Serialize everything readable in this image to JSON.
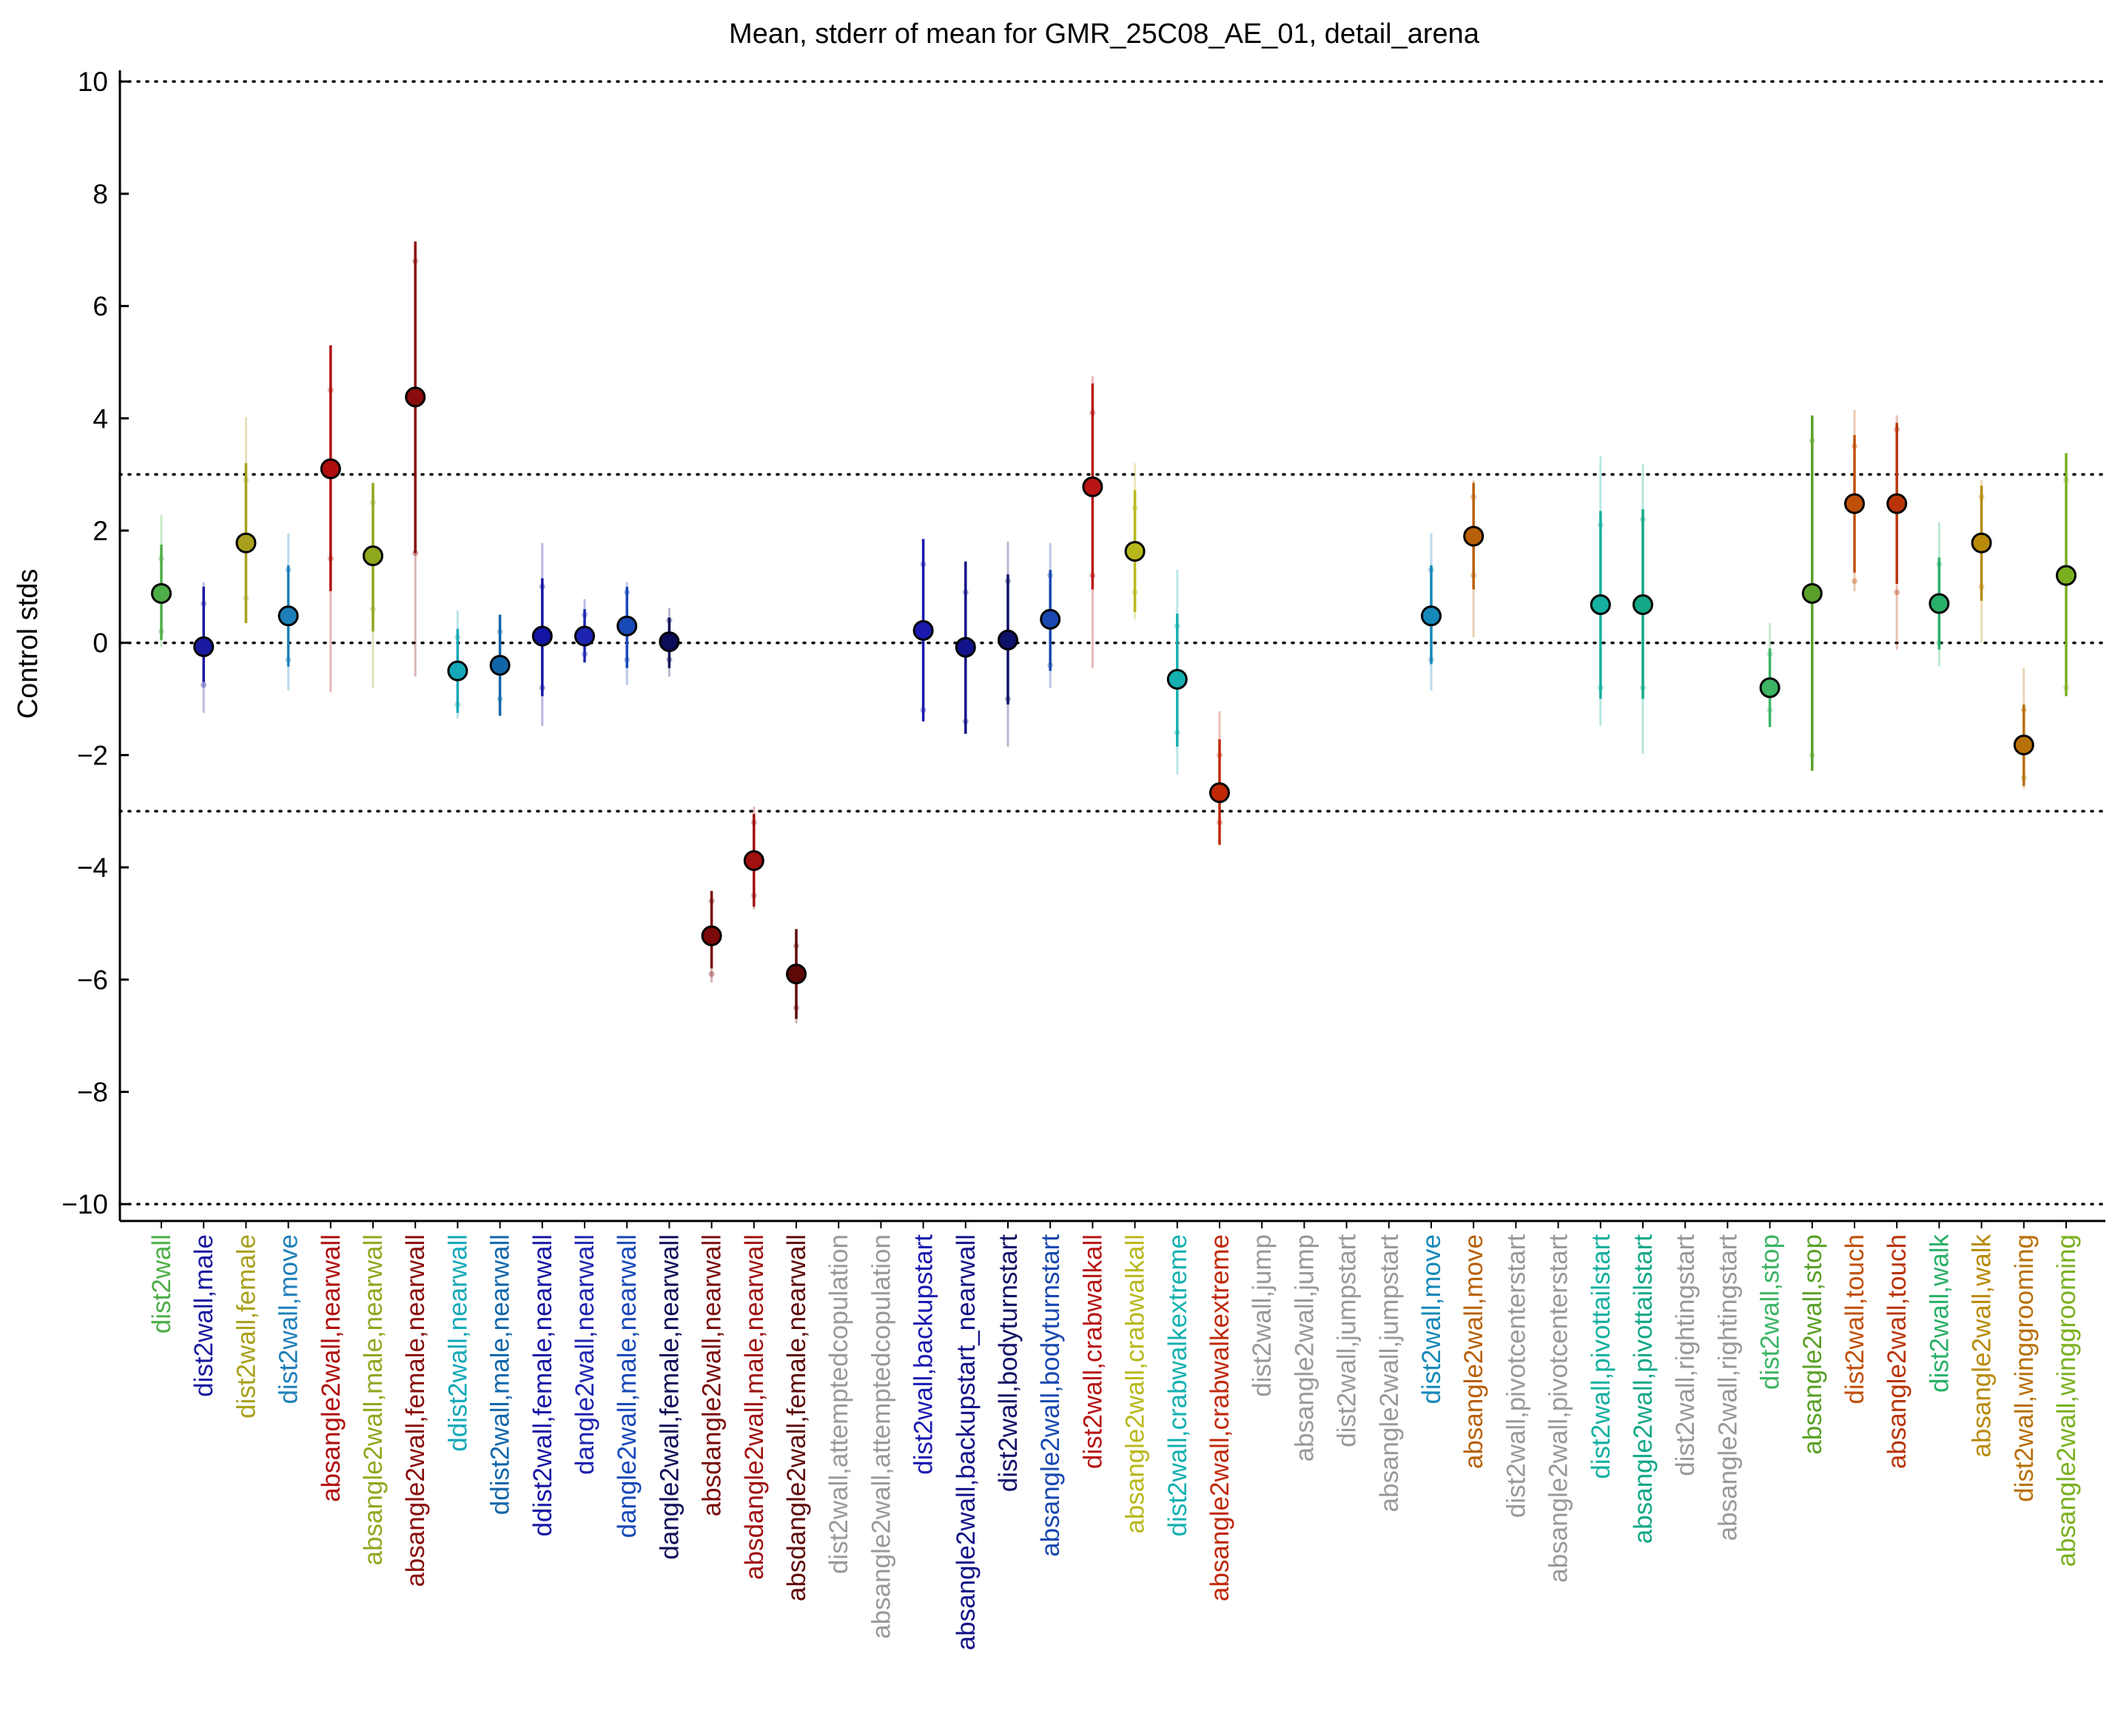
{
  "chart_data": {
    "type": "scatter",
    "title": "Mean, stderr of mean for GMR_25C08_AE_01, detail_arena",
    "xlabel": "",
    "ylabel": "Control stds",
    "ylim": [
      -10.3,
      10.2
    ],
    "yticks": [
      10,
      8,
      6,
      4,
      2,
      0,
      -2,
      -4,
      -6,
      -8,
      -10
    ],
    "ytick_labels": [
      "10",
      "8",
      "6",
      "4",
      "2",
      "0",
      "−2",
      "−4",
      "−6",
      "−8",
      "−10"
    ],
    "reference_lines": [
      10,
      3,
      0,
      -3,
      -10
    ],
    "grid": false,
    "legend": "none",
    "categories": [
      {
        "label": "dist2wall",
        "color": "#4dae47",
        "mean": 0.88,
        "se_lo": 0.05,
        "se_hi": 1.75,
        "std_lo": -0.08,
        "std_hi": 2.28,
        "pts": [
          0.2,
          1.5
        ]
      },
      {
        "label": "dist2wall,male",
        "color": "#1a1aa0",
        "mean": -0.07,
        "se_lo": -0.7,
        "se_hi": 1.0,
        "std_lo": -1.25,
        "std_hi": 1.08,
        "pts": [
          -0.75,
          0.7
        ]
      },
      {
        "label": "dist2wall,female",
        "color": "#a8a01c",
        "mean": 1.78,
        "se_lo": 0.35,
        "se_hi": 3.2,
        "std_lo": 0.35,
        "std_hi": 4.02,
        "pts": [
          0.8,
          2.9
        ]
      },
      {
        "label": "dist2wall,move",
        "color": "#1e7fb8",
        "mean": 0.48,
        "se_lo": -0.42,
        "se_hi": 1.38,
        "std_lo": -0.85,
        "std_hi": 1.95,
        "pts": [
          -0.3,
          1.3
        ]
      },
      {
        "label": "absangle2wall,nearwall",
        "color": "#b00e0e",
        "mean": 3.1,
        "se_lo": 0.92,
        "se_hi": 5.3,
        "std_lo": -0.88,
        "std_hi": 5.3,
        "pts": [
          1.5,
          4.5
        ]
      },
      {
        "label": "absangle2wall,male,nearwall",
        "color": "#8ea81e",
        "mean": 1.55,
        "se_lo": 0.2,
        "se_hi": 2.85,
        "std_lo": -0.8,
        "std_hi": 2.85,
        "pts": [
          0.6,
          2.5
        ]
      },
      {
        "label": "absangle2wall,female,nearwall",
        "color": "#8a0c0c",
        "mean": 4.38,
        "se_lo": 1.6,
        "se_hi": 7.15,
        "std_lo": -0.6,
        "std_hi": 7.15,
        "pts": [
          1.6,
          6.8
        ]
      },
      {
        "label": "ddist2wall,nearwall",
        "color": "#14a8b8",
        "mean": -0.5,
        "se_lo": -1.25,
        "se_hi": 0.25,
        "std_lo": -1.35,
        "std_hi": 0.58,
        "pts": [
          -1.1,
          0.1
        ]
      },
      {
        "label": "ddist2wall,male,nearwall",
        "color": "#1166aa",
        "mean": -0.4,
        "se_lo": -1.3,
        "se_hi": 0.5,
        "std_lo": -1.3,
        "std_hi": 0.5,
        "pts": [
          -1.0,
          0.2
        ]
      },
      {
        "label": "ddist2wall,female,nearwall",
        "color": "#1515a5",
        "mean": 0.12,
        "se_lo": -0.95,
        "se_hi": 1.15,
        "std_lo": -1.48,
        "std_hi": 1.78,
        "pts": [
          -0.8,
          1.0
        ]
      },
      {
        "label": "dangle2wall,nearwall",
        "color": "#1e24b0",
        "mean": 0.12,
        "se_lo": -0.35,
        "se_hi": 0.6,
        "std_lo": -0.35,
        "std_hi": 0.78,
        "pts": [
          -0.2,
          0.5
        ]
      },
      {
        "label": "dangle2wall,male,nearwall",
        "color": "#1848b8",
        "mean": 0.3,
        "se_lo": -0.45,
        "se_hi": 1.0,
        "std_lo": -0.75,
        "std_hi": 1.08,
        "pts": [
          -0.3,
          0.9
        ]
      },
      {
        "label": "dangle2wall,female,nearwall",
        "color": "#0c0c58",
        "mean": 0.02,
        "se_lo": -0.45,
        "se_hi": 0.45,
        "std_lo": -0.6,
        "std_hi": 0.62,
        "pts": [
          -0.3,
          0.4
        ]
      },
      {
        "label": "absdangle2wall,nearwall",
        "color": "#7a0a0a",
        "mean": -5.22,
        "se_lo": -5.8,
        "se_hi": -4.42,
        "std_lo": -6.05,
        "std_hi": -4.42,
        "pts": [
          -5.9,
          -4.6
        ]
      },
      {
        "label": "absdangle2wall,male,nearwall",
        "color": "#a01010",
        "mean": -3.88,
        "se_lo": -4.7,
        "se_hi": -3.05,
        "std_lo": -4.75,
        "std_hi": -2.92,
        "pts": [
          -4.5,
          -3.2
        ]
      },
      {
        "label": "absdangle2wall,female,nearwall",
        "color": "#5e0808",
        "mean": -5.9,
        "se_lo": -6.7,
        "se_hi": -5.1,
        "std_lo": -6.78,
        "std_hi": -5.1,
        "pts": [
          -6.5,
          -5.4
        ]
      },
      {
        "label": "dist2wall,attemptedcopulation",
        "color": "#999999",
        "mean": null
      },
      {
        "label": "absangle2wall,attemptedcopulation",
        "color": "#999999",
        "mean": null
      },
      {
        "label": "dist2wall,backupstart",
        "color": "#1a1ab0",
        "mean": 0.22,
        "se_lo": -1.4,
        "se_hi": 1.85,
        "std_lo": -1.4,
        "std_hi": 1.85,
        "pts": [
          -1.2,
          1.4
        ]
      },
      {
        "label": "absangle2wall,backupstart_nearwall",
        "color": "#12128a",
        "mean": -0.08,
        "se_lo": -1.62,
        "se_hi": 1.45,
        "std_lo": -1.62,
        "std_hi": 1.45,
        "pts": [
          -1.4,
          0.9
        ]
      },
      {
        "label": "dist2wall,bodyturnstart",
        "color": "#101068",
        "mean": 0.05,
        "se_lo": -1.1,
        "se_hi": 1.22,
        "std_lo": -1.85,
        "std_hi": 1.8,
        "pts": [
          -1.0,
          1.1
        ]
      },
      {
        "label": "absangle2wall,bodyturnstart",
        "color": "#1848b0",
        "mean": 0.42,
        "se_lo": -0.5,
        "se_hi": 1.3,
        "std_lo": -0.8,
        "std_hi": 1.78,
        "pts": [
          -0.4,
          1.2
        ]
      },
      {
        "label": "dist2wall,crabwalkall",
        "color": "#b81414",
        "mean": 2.78,
        "se_lo": 0.95,
        "se_hi": 4.62,
        "std_lo": -0.45,
        "std_hi": 4.75,
        "pts": [
          1.2,
          4.1
        ]
      },
      {
        "label": "absangle2wall,crabwalkall",
        "color": "#b8b81c",
        "mean": 1.63,
        "se_lo": 0.55,
        "se_hi": 2.72,
        "std_lo": 0.42,
        "std_hi": 3.2,
        "pts": [
          0.9,
          2.4
        ]
      },
      {
        "label": "dist2wall,crabwalkextreme",
        "color": "#14b0b0",
        "mean": -0.65,
        "se_lo": -1.85,
        "se_hi": 0.52,
        "std_lo": -2.35,
        "std_hi": 1.3,
        "pts": [
          -1.6,
          0.3
        ]
      },
      {
        "label": "absangle2wall,crabwalkextreme",
        "color": "#c02808",
        "mean": -2.67,
        "se_lo": -3.6,
        "se_hi": -1.72,
        "std_lo": -3.6,
        "std_hi": -1.22,
        "pts": [
          -3.2,
          -2.0
        ]
      },
      {
        "label": "dist2wall,jump",
        "color": "#999999",
        "mean": null
      },
      {
        "label": "absangle2wall,jump",
        "color": "#999999",
        "mean": null
      },
      {
        "label": "dist2wall,jumpstart",
        "color": "#999999",
        "mean": null
      },
      {
        "label": "absangle2wall,jumpstart",
        "color": "#999999",
        "mean": null
      },
      {
        "label": "dist2wall,move",
        "color": "#1488b8",
        "mean": 0.48,
        "se_lo": -0.38,
        "se_hi": 1.38,
        "std_lo": -0.85,
        "std_hi": 1.95,
        "pts": [
          -0.3,
          1.3
        ]
      },
      {
        "label": "absangle2wall,move",
        "color": "#b86008",
        "mean": 1.9,
        "se_lo": 0.95,
        "se_hi": 2.85,
        "std_lo": 0.1,
        "std_hi": 2.9,
        "pts": [
          1.2,
          2.6
        ]
      },
      {
        "label": "dist2wall,pivotcenterstart",
        "color": "#999999",
        "mean": null
      },
      {
        "label": "absangle2wall,pivotcenterstart",
        "color": "#999999",
        "mean": null
      },
      {
        "label": "dist2wall,pivottailstart",
        "color": "#14b0a0",
        "mean": 0.68,
        "se_lo": -1.0,
        "se_hi": 2.35,
        "std_lo": -1.48,
        "std_hi": 3.32,
        "pts": [
          -0.8,
          2.1
        ]
      },
      {
        "label": "absangle2wall,pivottailstart",
        "color": "#14a888",
        "mean": 0.68,
        "se_lo": -1.0,
        "se_hi": 2.38,
        "std_lo": -1.98,
        "std_hi": 3.18,
        "pts": [
          -0.8,
          2.2
        ]
      },
      {
        "label": "dist2wall,rightingstart",
        "color": "#999999",
        "mean": null
      },
      {
        "label": "absangle2wall,rightingstart",
        "color": "#999999",
        "mean": null
      },
      {
        "label": "dist2wall,stop",
        "color": "#3cb464",
        "mean": -0.8,
        "se_lo": -1.5,
        "se_hi": -0.1,
        "std_lo": -1.5,
        "std_hi": 0.35,
        "pts": [
          -1.2,
          -0.2
        ]
      },
      {
        "label": "absangle2wall,stop",
        "color": "#5aa028",
        "mean": 0.88,
        "se_lo": -2.28,
        "se_hi": 4.05,
        "std_lo": -2.28,
        "std_hi": 4.05,
        "pts": [
          -2.0,
          3.6
        ]
      },
      {
        "label": "dist2wall,touch",
        "color": "#c05008",
        "mean": 2.48,
        "se_lo": 1.25,
        "se_hi": 3.7,
        "std_lo": 0.92,
        "std_hi": 4.15,
        "pts": [
          1.1,
          3.5
        ]
      },
      {
        "label": "absangle2wall,touch",
        "color": "#b83408",
        "mean": 2.48,
        "se_lo": 1.05,
        "se_hi": 3.92,
        "std_lo": -0.12,
        "std_hi": 4.05,
        "pts": [
          0.9,
          3.8
        ]
      },
      {
        "label": "dist2wall,walk",
        "color": "#28b068",
        "mean": 0.7,
        "se_lo": -0.12,
        "se_hi": 1.52,
        "std_lo": -0.42,
        "std_hi": 2.15,
        "pts": [
          0.0,
          1.4
        ]
      },
      {
        "label": "absangle2wall,walk",
        "color": "#b88a08",
        "mean": 1.78,
        "se_lo": 0.75,
        "se_hi": 2.8,
        "std_lo": 0.0,
        "std_hi": 2.9,
        "pts": [
          1.0,
          2.6
        ]
      },
      {
        "label": "dist2wall,winggrooming",
        "color": "#b87008",
        "mean": -1.82,
        "se_lo": -2.55,
        "se_hi": -1.1,
        "std_lo": -2.6,
        "std_hi": -0.45,
        "pts": [
          -2.4,
          -1.2
        ]
      },
      {
        "label": "absangle2wall,winggrooming",
        "color": "#7ab020",
        "mean": 1.2,
        "se_lo": -0.95,
        "se_hi": 3.38,
        "std_lo": -0.95,
        "std_hi": 3.38,
        "pts": [
          -0.8,
          2.9
        ]
      }
    ]
  }
}
